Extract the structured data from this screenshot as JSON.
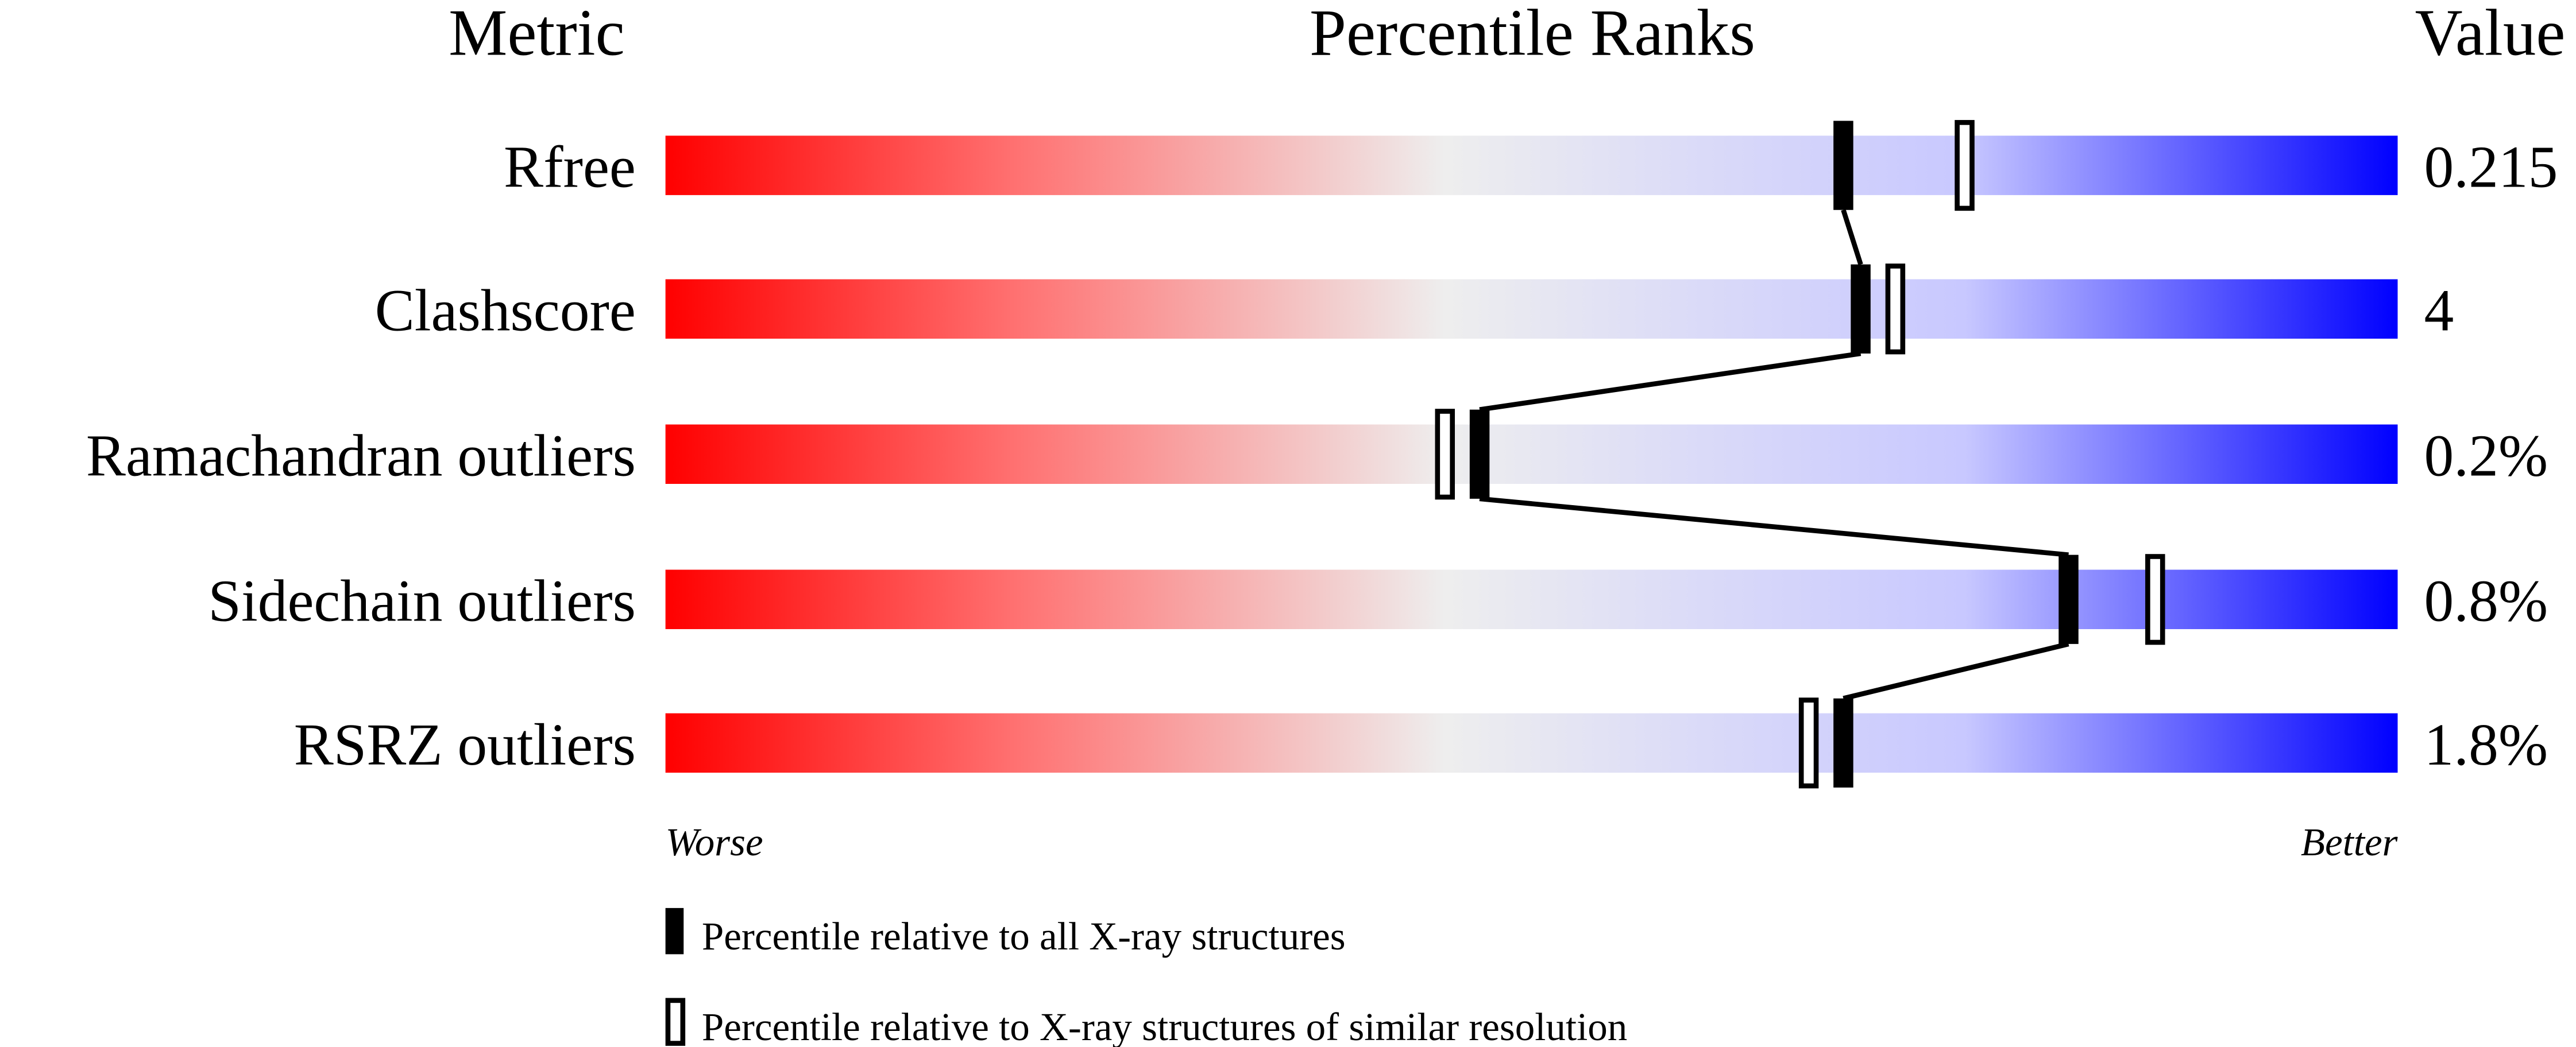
{
  "chart_data": {
    "type": "percentile-slider",
    "headers": {
      "metric": "Metric",
      "percentile": "Percentile Ranks",
      "value": "Value"
    },
    "xlim": [
      0,
      100
    ],
    "axis_labels": {
      "left": "Worse",
      "right": "Better"
    },
    "colors": {
      "worse": "#ff0000",
      "middle": "#eeeeee",
      "better": "#0000ff",
      "marker": "#000000"
    },
    "rows": [
      {
        "metric": "Rfree",
        "value": "0.215",
        "percentile_all": 68,
        "percentile_similar": 75
      },
      {
        "metric": "Clashscore",
        "value": "4",
        "percentile_all": 69,
        "percentile_similar": 71
      },
      {
        "metric": "Ramachandran outliers",
        "value": "0.2%",
        "percentile_all": 47,
        "percentile_similar": 45
      },
      {
        "metric": "Sidechain outliers",
        "value": "0.8%",
        "percentile_all": 81,
        "percentile_similar": 86
      },
      {
        "metric": "RSRZ outliers",
        "value": "1.8%",
        "percentile_all": 68,
        "percentile_similar": 66
      }
    ],
    "legend": [
      {
        "marker": "filled",
        "label": "Percentile relative to all X-ray structures"
      },
      {
        "marker": "open",
        "label": "Percentile relative to X-ray structures of similar resolution"
      }
    ]
  }
}
